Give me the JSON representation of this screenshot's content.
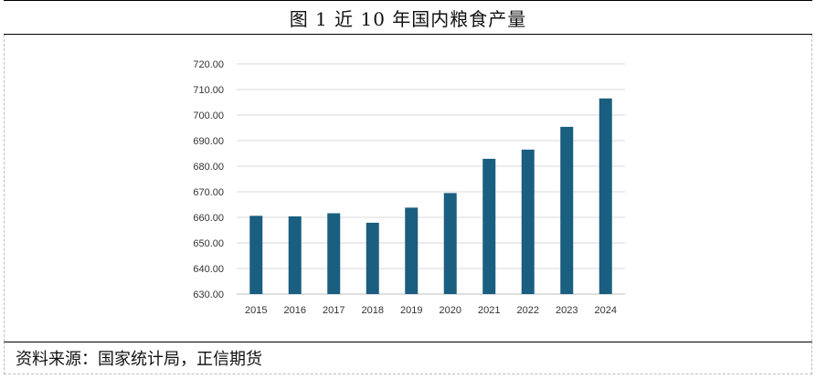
{
  "figure": {
    "title": "图 1  近 10 年国内粮食产量",
    "source": "资料来源：国家统计局，正信期货"
  },
  "chart_data": {
    "type": "bar",
    "categories": [
      "2015",
      "2016",
      "2017",
      "2018",
      "2019",
      "2020",
      "2021",
      "2022",
      "2023",
      "2024"
    ],
    "values": [
      660.6,
      660.4,
      661.6,
      657.9,
      663.8,
      669.5,
      682.9,
      686.5,
      695.4,
      706.5
    ],
    "title": "",
    "xlabel": "",
    "ylabel": "",
    "ylim": [
      630,
      720
    ],
    "yticks": [
      "630.00",
      "640.00",
      "650.00",
      "660.00",
      "670.00",
      "680.00",
      "690.00",
      "700.00",
      "710.00",
      "720.00"
    ],
    "grid": true,
    "legend": "none",
    "bar_color": "#1a5e80"
  }
}
